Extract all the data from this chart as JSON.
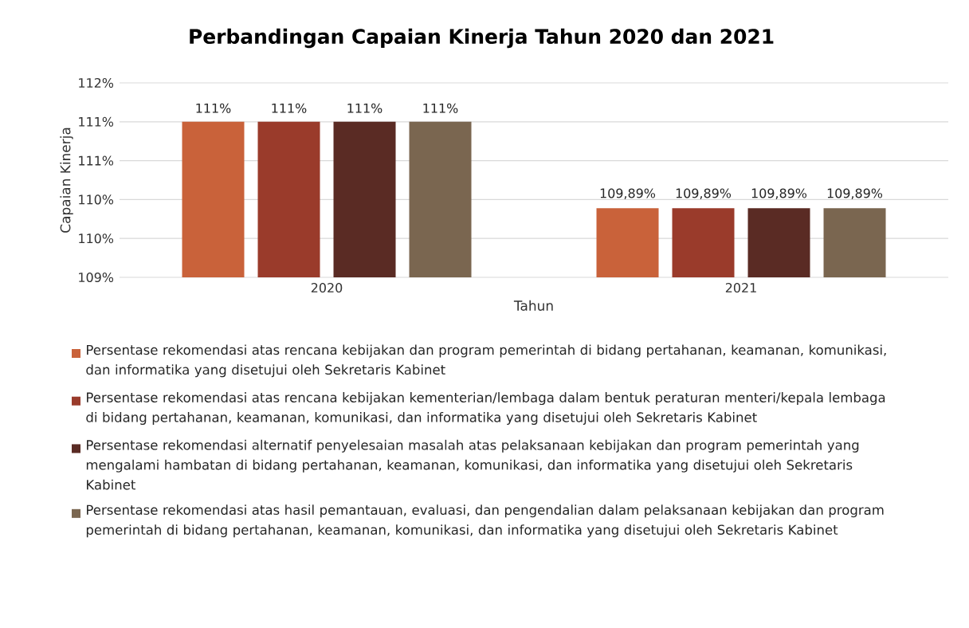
{
  "chart_data": {
    "type": "bar",
    "title": "Perbandingan Capaian Kinerja Tahun 2020 dan 2021",
    "xlabel": "Tahun",
    "ylabel": "Capaian Kinerja",
    "categories": [
      "2020",
      "2021"
    ],
    "ylim": [
      109,
      111.5
    ],
    "yticks": [
      {
        "value": 109,
        "label": "109%"
      },
      {
        "value": 109.5,
        "label": "110%"
      },
      {
        "value": 110,
        "label": "110%"
      },
      {
        "value": 110.5,
        "label": "111%"
      },
      {
        "value": 111,
        "label": "111%"
      },
      {
        "value": 111.5,
        "label": "112%"
      }
    ],
    "grid": "y",
    "legend": "bottom",
    "series": [
      {
        "name": "Persentase rekomendasi atas rencana kebijakan dan program pemerintah di bidang pertahanan, keamanan, komunikasi, dan informatika yang disetujui oleh Sekretaris Kabinet",
        "color": "#c9623a",
        "values": [
          111,
          109.89
        ],
        "value_labels": [
          "111%",
          "109,89%"
        ]
      },
      {
        "name": "Persentase rekomendasi atas rencana kebijakan kementerian/lembaga dalam bentuk peraturan menteri/kepala lembaga di bidang pertahanan, keamanan, komunikasi, dan informatika yang disetujui oleh Sekretaris Kabinet",
        "color": "#9a3b2b",
        "values": [
          111,
          109.89
        ],
        "value_labels": [
          "111%",
          "109,89%"
        ]
      },
      {
        "name": "Persentase rekomendasi alternatif penyelesaian masalah atas pelaksanaan kebijakan dan program pemerintah yang mengalami hambatan di bidang pertahanan, keamanan, komunikasi, dan informatika yang disetujui oleh Sekretaris Kabinet",
        "color": "#5a2b24",
        "values": [
          111,
          109.89
        ],
        "value_labels": [
          "111%",
          "109,89%"
        ]
      },
      {
        "name": "Persentase rekomendasi atas hasil pemantauan, evaluasi, dan pengendalian dalam pelaksanaan kebijakan dan program pemerintah di bidang pertahanan, keamanan, komunikasi, dan informatika yang disetujui oleh Sekretaris Kabinet",
        "color": "#7a6650",
        "values": [
          111,
          109.89
        ],
        "value_labels": [
          "111%",
          "109,89%"
        ]
      }
    ]
  }
}
